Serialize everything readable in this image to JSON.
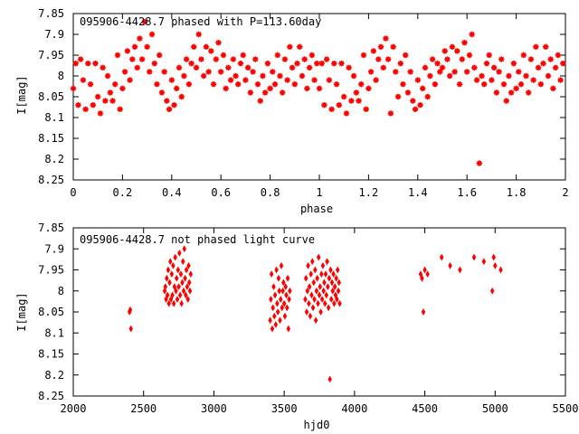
{
  "chart_data": [
    {
      "type": "scatter",
      "title": "095906-4428.7 phased with P=113.60day",
      "xlabel": "phase",
      "ylabel": "I[mag]",
      "xlim": [
        0,
        2
      ],
      "ylim": [
        8.25,
        7.85
      ],
      "y_inverted": true,
      "grid": false,
      "marker": "star",
      "color": "#ff0000",
      "x_ticks": [
        "0",
        "0.2",
        "0.4",
        "0.6",
        "0.8",
        "1",
        "1.2",
        "1.4",
        "1.6",
        "1.8",
        "2"
      ],
      "y_ticks": [
        "7.85",
        "7.9",
        "7.95",
        "8",
        "8.05",
        "8.1",
        "8.15",
        "8.2",
        "8.25"
      ],
      "points": [
        [
          0.0,
          8.03
        ],
        [
          0.01,
          7.97
        ],
        [
          0.02,
          8.07
        ],
        [
          0.03,
          7.96
        ],
        [
          0.04,
          8.01
        ],
        [
          0.05,
          8.08
        ],
        [
          0.06,
          7.97
        ],
        [
          0.07,
          8.02
        ],
        [
          0.08,
          8.07
        ],
        [
          0.09,
          7.97
        ],
        [
          0.1,
          8.05
        ],
        [
          0.11,
          8.09
        ],
        [
          0.12,
          7.98
        ],
        [
          0.13,
          8.06
        ],
        [
          0.14,
          8.0
        ],
        [
          0.15,
          8.04
        ],
        [
          0.16,
          8.06
        ],
        [
          0.17,
          8.02
        ],
        [
          0.18,
          7.95
        ],
        [
          0.19,
          8.08
        ],
        [
          0.2,
          8.03
        ],
        [
          0.21,
          7.99
        ],
        [
          0.22,
          7.94
        ],
        [
          0.23,
          8.01
        ],
        [
          0.24,
          7.96
        ],
        [
          0.25,
          7.93
        ],
        [
          0.26,
          7.98
        ],
        [
          0.27,
          7.91
        ],
        [
          0.28,
          7.96
        ],
        [
          0.29,
          7.87
        ],
        [
          0.3,
          7.93
        ],
        [
          0.31,
          7.99
        ],
        [
          0.32,
          7.9
        ],
        [
          0.33,
          7.97
        ],
        [
          0.34,
          8.02
        ],
        [
          0.35,
          7.95
        ],
        [
          0.36,
          8.04
        ],
        [
          0.37,
          7.99
        ],
        [
          0.38,
          8.06
        ],
        [
          0.39,
          8.08
        ],
        [
          0.4,
          8.01
        ],
        [
          0.41,
          8.07
        ],
        [
          0.42,
          8.03
        ],
        [
          0.43,
          7.98
        ],
        [
          0.44,
          8.05
        ],
        [
          0.45,
          8.0
        ],
        [
          0.46,
          7.96
        ],
        [
          0.47,
          8.02
        ],
        [
          0.48,
          7.97
        ],
        [
          0.49,
          7.93
        ],
        [
          0.5,
          7.98
        ],
        [
          0.51,
          7.9
        ],
        [
          0.52,
          7.96
        ],
        [
          0.53,
          8.0
        ],
        [
          0.54,
          7.93
        ],
        [
          0.55,
          7.99
        ],
        [
          0.56,
          7.94
        ],
        [
          0.57,
          8.02
        ],
        [
          0.58,
          7.96
        ],
        [
          0.59,
          7.92
        ],
        [
          0.6,
          7.99
        ],
        [
          0.61,
          7.95
        ],
        [
          0.62,
          8.03
        ],
        [
          0.63,
          7.98
        ],
        [
          0.64,
          8.01
        ],
        [
          0.65,
          7.96
        ],
        [
          0.66,
          8.0
        ],
        [
          0.67,
          8.02
        ],
        [
          0.68,
          7.97
        ],
        [
          0.69,
          7.95
        ],
        [
          0.7,
          8.01
        ],
        [
          0.71,
          7.98
        ],
        [
          0.72,
          8.04
        ],
        [
          0.73,
          7.99
        ],
        [
          0.74,
          7.96
        ],
        [
          0.75,
          8.02
        ],
        [
          0.76,
          8.06
        ],
        [
          0.77,
          8.0
        ],
        [
          0.78,
          8.04
        ],
        [
          0.79,
          7.97
        ],
        [
          0.8,
          8.03
        ],
        [
          0.81,
          7.99
        ],
        [
          0.82,
          8.02
        ],
        [
          0.83,
          7.95
        ],
        [
          0.84,
          8.0
        ],
        [
          0.85,
          8.04
        ],
        [
          0.86,
          7.96
        ],
        [
          0.87,
          8.01
        ],
        [
          0.88,
          7.93
        ],
        [
          0.89,
          7.98
        ],
        [
          0.9,
          8.02
        ],
        [
          0.91,
          7.97
        ],
        [
          0.92,
          7.93
        ],
        [
          0.93,
          8.0
        ],
        [
          0.94,
          7.96
        ],
        [
          0.95,
          8.03
        ],
        [
          0.96,
          7.98
        ],
        [
          0.97,
          7.95
        ],
        [
          0.98,
          8.01
        ],
        [
          0.99,
          7.97
        ],
        [
          1.0,
          8.03
        ],
        [
          1.01,
          7.97
        ],
        [
          1.02,
          8.07
        ],
        [
          1.03,
          7.96
        ],
        [
          1.04,
          8.01
        ],
        [
          1.05,
          8.08
        ],
        [
          1.06,
          7.97
        ],
        [
          1.07,
          8.02
        ],
        [
          1.08,
          8.07
        ],
        [
          1.09,
          7.97
        ],
        [
          1.1,
          8.05
        ],
        [
          1.11,
          8.09
        ],
        [
          1.12,
          7.98
        ],
        [
          1.13,
          8.06
        ],
        [
          1.14,
          8.0
        ],
        [
          1.15,
          8.04
        ],
        [
          1.16,
          8.06
        ],
        [
          1.17,
          8.02
        ],
        [
          1.18,
          7.95
        ],
        [
          1.19,
          8.08
        ],
        [
          1.2,
          8.03
        ],
        [
          1.21,
          7.99
        ],
        [
          1.22,
          7.94
        ],
        [
          1.23,
          8.01
        ],
        [
          1.24,
          7.96
        ],
        [
          1.25,
          7.93
        ],
        [
          1.26,
          7.98
        ],
        [
          1.27,
          7.91
        ],
        [
          1.28,
          7.96
        ],
        [
          1.29,
          8.09
        ],
        [
          1.3,
          7.93
        ],
        [
          1.31,
          7.99
        ],
        [
          1.32,
          8.05
        ],
        [
          1.33,
          7.97
        ],
        [
          1.34,
          8.02
        ],
        [
          1.35,
          7.95
        ],
        [
          1.36,
          8.04
        ],
        [
          1.37,
          7.99
        ],
        [
          1.38,
          8.06
        ],
        [
          1.39,
          8.08
        ],
        [
          1.4,
          8.01
        ],
        [
          1.41,
          8.07
        ],
        [
          1.42,
          8.03
        ],
        [
          1.43,
          7.98
        ],
        [
          1.44,
          8.05
        ],
        [
          1.45,
          8.0
        ],
        [
          1.46,
          7.96
        ],
        [
          1.47,
          8.02
        ],
        [
          1.48,
          7.97
        ],
        [
          1.49,
          7.99
        ],
        [
          1.5,
          7.98
        ],
        [
          1.51,
          7.94
        ],
        [
          1.52,
          7.96
        ],
        [
          1.53,
          8.0
        ],
        [
          1.54,
          7.93
        ],
        [
          1.55,
          7.99
        ],
        [
          1.56,
          7.94
        ],
        [
          1.57,
          8.02
        ],
        [
          1.58,
          7.96
        ],
        [
          1.59,
          7.92
        ],
        [
          1.6,
          7.99
        ],
        [
          1.61,
          7.95
        ],
        [
          1.62,
          7.9
        ],
        [
          1.63,
          7.98
        ],
        [
          1.64,
          8.01
        ],
        [
          1.65,
          8.21
        ],
        [
          1.66,
          8.0
        ],
        [
          1.67,
          8.02
        ],
        [
          1.68,
          7.97
        ],
        [
          1.69,
          7.95
        ],
        [
          1.7,
          8.01
        ],
        [
          1.71,
          7.98
        ],
        [
          1.72,
          8.04
        ],
        [
          1.73,
          7.99
        ],
        [
          1.74,
          7.96
        ],
        [
          1.75,
          8.02
        ],
        [
          1.76,
          8.06
        ],
        [
          1.77,
          8.0
        ],
        [
          1.78,
          8.04
        ],
        [
          1.79,
          7.97
        ],
        [
          1.8,
          8.03
        ],
        [
          1.81,
          7.99
        ],
        [
          1.82,
          8.02
        ],
        [
          1.83,
          7.95
        ],
        [
          1.84,
          8.0
        ],
        [
          1.85,
          8.04
        ],
        [
          1.86,
          7.96
        ],
        [
          1.87,
          8.01
        ],
        [
          1.88,
          7.93
        ],
        [
          1.89,
          7.98
        ],
        [
          1.9,
          8.02
        ],
        [
          1.91,
          7.97
        ],
        [
          1.92,
          7.93
        ],
        [
          1.93,
          8.0
        ],
        [
          1.94,
          7.96
        ],
        [
          1.95,
          8.03
        ],
        [
          1.96,
          7.98
        ],
        [
          1.97,
          7.95
        ],
        [
          1.98,
          8.01
        ],
        [
          1.99,
          7.97
        ]
      ]
    },
    {
      "type": "scatter",
      "title": "095906-4428.7 not phased light curve",
      "xlabel": "hjd0",
      "ylabel": "I[mag]",
      "xlim": [
        2000,
        5500
      ],
      "ylim": [
        8.25,
        7.85
      ],
      "y_inverted": true,
      "grid": false,
      "marker": "diamond",
      "color": "#ff0000",
      "x_ticks": [
        "2000",
        "2500",
        "3000",
        "3500",
        "4000",
        "4500",
        "5000",
        "5500"
      ],
      "y_ticks": [
        "7.85",
        "7.9",
        "7.95",
        "8",
        "8.05",
        "8.1",
        "8.15",
        "8.2",
        "8.25"
      ],
      "points": [
        [
          2400,
          8.05
        ],
        [
          2405,
          8.045
        ],
        [
          2410,
          8.09
        ],
        [
          2650,
          8.0
        ],
        [
          2655,
          7.99
        ],
        [
          2660,
          8.02
        ],
        [
          2665,
          7.97
        ],
        [
          2670,
          8.01
        ],
        [
          2675,
          7.95
        ],
        [
          2680,
          8.03
        ],
        [
          2685,
          7.98
        ],
        [
          2690,
          7.93
        ],
        [
          2695,
          8.02
        ],
        [
          2700,
          7.96
        ],
        [
          2705,
          8.01
        ],
        [
          2710,
          7.94
        ],
        [
          2715,
          8.03
        ],
        [
          2720,
          7.99
        ],
        [
          2725,
          7.92
        ],
        [
          2730,
          8.0
        ],
        [
          2735,
          7.97
        ],
        [
          2740,
          8.02
        ],
        [
          2745,
          7.95
        ],
        [
          2750,
          7.99
        ],
        [
          2755,
          7.91
        ],
        [
          2760,
          8.01
        ],
        [
          2765,
          7.96
        ],
        [
          2770,
          8.03
        ],
        [
          2775,
          7.98
        ],
        [
          2780,
          7.93
        ],
        [
          2785,
          8.0
        ],
        [
          2790,
          7.9
        ],
        [
          2795,
          7.97
        ],
        [
          2800,
          8.01
        ],
        [
          2805,
          7.95
        ],
        [
          2810,
          7.99
        ],
        [
          2815,
          8.02
        ],
        [
          2820,
          7.94
        ],
        [
          2825,
          7.98
        ],
        [
          2830,
          8.0
        ],
        [
          2835,
          7.96
        ],
        [
          3400,
          8.07
        ],
        [
          3405,
          8.02
        ],
        [
          3410,
          7.96
        ],
        [
          3415,
          8.09
        ],
        [
          3420,
          8.04
        ],
        [
          3425,
          7.99
        ],
        [
          3430,
          8.06
        ],
        [
          3435,
          8.01
        ],
        [
          3440,
          8.08
        ],
        [
          3445,
          7.95
        ],
        [
          3450,
          8.03
        ],
        [
          3455,
          8.05
        ],
        [
          3460,
          7.97
        ],
        [
          3465,
          8.0
        ],
        [
          3470,
          8.07
        ],
        [
          3475,
          8.02
        ],
        [
          3480,
          7.94
        ],
        [
          3485,
          8.04
        ],
        [
          3490,
          8.0
        ],
        [
          3495,
          7.98
        ],
        [
          3500,
          8.03
        ],
        [
          3505,
          8.06
        ],
        [
          3510,
          7.99
        ],
        [
          3515,
          8.01
        ],
        [
          3520,
          8.04
        ],
        [
          3525,
          7.97
        ],
        [
          3530,
          8.09
        ],
        [
          3535,
          8.02
        ],
        [
          3540,
          8.0
        ],
        [
          3650,
          8.02
        ],
        [
          3655,
          7.97
        ],
        [
          3660,
          8.05
        ],
        [
          3665,
          8.0
        ],
        [
          3670,
          7.94
        ],
        [
          3675,
          8.03
        ],
        [
          3680,
          7.99
        ],
        [
          3685,
          8.06
        ],
        [
          3690,
          7.96
        ],
        [
          3695,
          8.01
        ],
        [
          3700,
          7.93
        ],
        [
          3705,
          8.04
        ],
        [
          3710,
          7.98
        ],
        [
          3715,
          8.02
        ],
        [
          3720,
          7.95
        ],
        [
          3725,
          8.07
        ],
        [
          3730,
          8.0
        ],
        [
          3735,
          7.97
        ],
        [
          3740,
          8.03
        ],
        [
          3745,
          7.92
        ],
        [
          3750,
          8.01
        ],
        [
          3755,
          7.99
        ],
        [
          3760,
          8.05
        ],
        [
          3765,
          7.96
        ],
        [
          3770,
          8.02
        ],
        [
          3775,
          7.94
        ],
        [
          3780,
          8.0
        ],
        [
          3785,
          7.98
        ],
        [
          3790,
          8.03
        ],
        [
          3795,
          7.96
        ],
        [
          3800,
          8.01
        ],
        [
          3805,
          7.93
        ],
        [
          3810,
          7.99
        ],
        [
          3815,
          8.04
        ],
        [
          3820,
          7.97
        ],
        [
          3825,
          8.21
        ],
        [
          3830,
          7.95
        ],
        [
          3835,
          8.02
        ],
        [
          3840,
          7.98
        ],
        [
          3845,
          8.0
        ],
        [
          3850,
          7.96
        ],
        [
          3855,
          8.03
        ],
        [
          3860,
          7.99
        ],
        [
          3865,
          8.01
        ],
        [
          3870,
          7.97
        ],
        [
          3875,
          8.02
        ],
        [
          3880,
          7.95
        ],
        [
          3885,
          8.0
        ],
        [
          3890,
          7.98
        ],
        [
          3895,
          8.03
        ],
        [
          4470,
          7.96
        ],
        [
          4480,
          7.97
        ],
        [
          4490,
          8.05
        ],
        [
          4500,
          7.95
        ],
        [
          4520,
          7.96
        ],
        [
          4620,
          7.92
        ],
        [
          4680,
          7.94
        ],
        [
          4750,
          7.95
        ],
        [
          4850,
          7.92
        ],
        [
          4920,
          7.93
        ],
        [
          4980,
          8.0
        ],
        [
          4990,
          7.92
        ],
        [
          5000,
          7.94
        ],
        [
          5040,
          7.95
        ]
      ]
    }
  ]
}
